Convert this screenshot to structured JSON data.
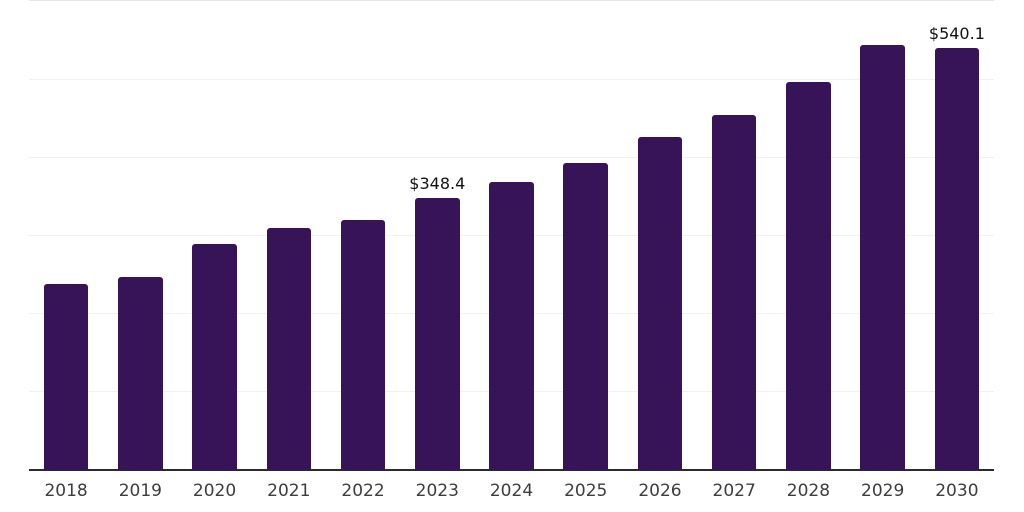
{
  "chart_data": {
    "type": "bar",
    "categories": [
      "2018",
      "2019",
      "2020",
      "2021",
      "2022",
      "2023",
      "2024",
      "2025",
      "2026",
      "2027",
      "2028",
      "2029",
      "2030"
    ],
    "values": [
      238,
      247,
      289,
      310,
      320,
      348.4,
      369,
      393,
      426,
      454,
      497,
      544,
      540.1
    ],
    "data_labels": [
      {
        "index": 5,
        "text": "$348.4"
      },
      {
        "index": 12,
        "text": "$540.1"
      }
    ],
    "title": "",
    "xlabel": "",
    "ylabel": "",
    "ylim": [
      0,
      600
    ],
    "grid": "horizontal",
    "gridline_interval": 100,
    "legend": "none",
    "colors": {
      "bar": "#371457",
      "axis_line": "#2b2b2b",
      "gridline": "#f1f1f1",
      "top_gridline": "#e6e6e6",
      "x_label": "#3d3d3d",
      "value_label": "#111111",
      "background": "#ffffff"
    }
  }
}
